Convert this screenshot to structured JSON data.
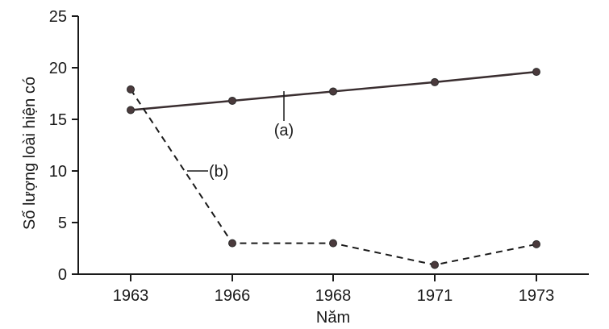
{
  "chart_data": {
    "type": "line",
    "xlabel": "Năm",
    "ylabel": "Số lượng loài hiện có",
    "x": [
      1963,
      1966,
      1968,
      1971,
      1973
    ],
    "x_tick_labels": [
      "1963",
      "1966",
      "1968",
      "1971",
      "1973"
    ],
    "y_ticks": [
      0,
      5,
      10,
      15,
      20,
      25
    ],
    "y_tick_labels": [
      "0",
      "5",
      "10",
      "15",
      "20",
      "25"
    ],
    "ylim": [
      0,
      25
    ],
    "grid": false,
    "series": [
      {
        "name": "(a)",
        "style": "solid",
        "values": [
          15.9,
          16.8,
          17.7,
          18.6,
          19.6
        ]
      },
      {
        "name": "(b)",
        "style": "dashed",
        "values": [
          17.9,
          3.0,
          3.0,
          0.9,
          2.9
        ]
      }
    ]
  }
}
